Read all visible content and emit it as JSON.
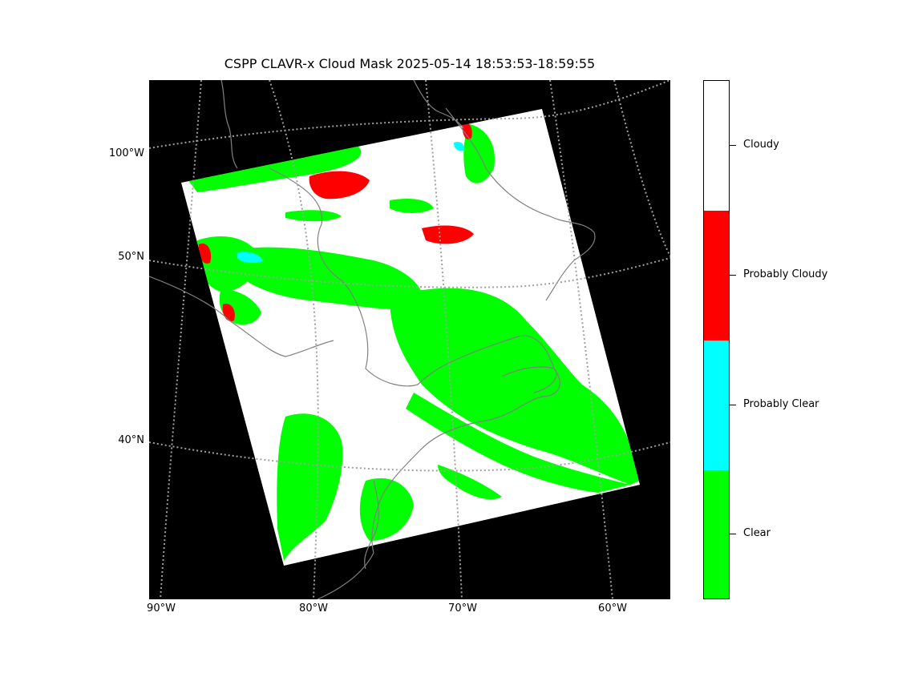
{
  "title": "CSPP CLAVR-x Cloud Mask 2025-05-14 18:53:53-18:59:55",
  "lat_labels": [
    "100°W",
    "50°N",
    "40°N"
  ],
  "lon_labels": [
    "90°W",
    "80°W",
    "70°W",
    "60°W"
  ],
  "colorbar": {
    "categories": [
      {
        "label": "Cloudy",
        "color": "#ffffff"
      },
      {
        "label": "Probably Cloudy",
        "color": "#ff0000"
      },
      {
        "label": "Probably Clear",
        "color": "#00ffff"
      },
      {
        "label": "Clear",
        "color": "#00ff00"
      }
    ]
  },
  "colors": {
    "background": "#000000",
    "coastline": "#808080",
    "gridline": "#a0a0a0"
  }
}
